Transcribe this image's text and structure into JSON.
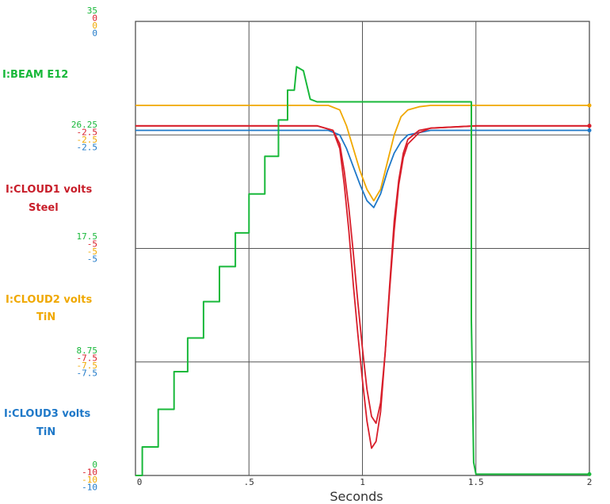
{
  "chart_data": {
    "type": "line",
    "xlabel": "Seconds",
    "xlim": [
      0,
      2
    ],
    "x_ticks": [
      "0",
      ".5",
      "1",
      "1.5",
      "2"
    ],
    "grid": true,
    "colors": {
      "beam": "#18b83a",
      "cloud1": "#d81e2a",
      "cloud2": "#f0a800",
      "cloud3": "#1e78c8"
    },
    "scales": [
      {
        "beam": "35",
        "cloud1": "0",
        "cloud2": "0",
        "cloud3": "0"
      },
      {
        "beam": "26.25",
        "cloud1": "-2.5",
        "cloud2": "-2.5",
        "cloud3": "-2.5"
      },
      {
        "beam": "17.5",
        "cloud1": "-5",
        "cloud2": "-5",
        "cloud3": "-5"
      },
      {
        "beam": "8.75",
        "cloud1": "-7.5",
        "cloud2": "-7.5",
        "cloud3": "-7.5"
      },
      {
        "beam": "0",
        "cloud1": "-10",
        "cloud2": "-10",
        "cloud3": "-10"
      }
    ],
    "series_labels": {
      "beam": "I:BEAM E12",
      "cloud1": "I:CLOUD1 volts",
      "cloud1_sub": "Steel",
      "cloud2": "I:CLOUD2 volts",
      "cloud2_sub": "TiN",
      "cloud3": "I:CLOUD3 volts",
      "cloud3_sub": "TiN"
    },
    "series": [
      {
        "name": "I:BEAM E12",
        "key": "beam",
        "ylim": [
          0,
          35
        ],
        "x": [
          0,
          0.03,
          0.03,
          0.1,
          0.1,
          0.17,
          0.17,
          0.23,
          0.23,
          0.3,
          0.3,
          0.37,
          0.37,
          0.44,
          0.44,
          0.5,
          0.5,
          0.57,
          0.57,
          0.63,
          0.63,
          0.67,
          0.67,
          0.7,
          0.71,
          0.74,
          0.77,
          0.8,
          1.2,
          1.48,
          1.48,
          1.49,
          1.5,
          2.0
        ],
        "y": [
          0,
          0,
          2.2,
          2.2,
          5.1,
          5.1,
          8.0,
          8.0,
          10.6,
          10.6,
          13.4,
          13.4,
          16.1,
          16.1,
          18.7,
          18.7,
          21.7,
          21.7,
          24.6,
          24.6,
          27.4,
          27.4,
          29.7,
          29.7,
          31.5,
          31.2,
          29.0,
          28.8,
          28.8,
          28.8,
          12.0,
          1.0,
          0.1,
          0.1
        ]
      },
      {
        "name": "I:CLOUD1 volts (Steel)",
        "key": "cloud1",
        "ylim": [
          -10,
          0
        ],
        "x": [
          0,
          0.8,
          0.87,
          0.9,
          0.92,
          0.94,
          0.96,
          0.98,
          1.0,
          1.02,
          1.04,
          1.06,
          1.08,
          1.1,
          1.12,
          1.14,
          1.16,
          1.18,
          1.2,
          1.25,
          1.3,
          1.5,
          2.0
        ],
        "y": [
          -2.3,
          -2.3,
          -2.4,
          -2.7,
          -3.3,
          -4.1,
          -5.1,
          -6.2,
          -7.2,
          -8.1,
          -8.7,
          -8.85,
          -8.4,
          -7.3,
          -5.8,
          -4.4,
          -3.5,
          -2.9,
          -2.6,
          -2.4,
          -2.35,
          -2.3,
          -2.3
        ]
      },
      {
        "name": "I:CLOUD1 volts (Steel) #2",
        "key": "cloud1",
        "x": [
          0,
          0.8,
          0.87,
          0.9,
          0.92,
          0.94,
          0.96,
          0.98,
          1.0,
          1.02,
          1.04,
          1.06,
          1.08,
          1.1,
          1.12,
          1.14,
          1.16,
          1.18,
          1.2,
          1.25,
          1.3,
          1.5,
          2.0
        ],
        "y": [
          -2.3,
          -2.3,
          -2.4,
          -2.8,
          -3.6,
          -4.6,
          -5.8,
          -6.9,
          -7.9,
          -8.8,
          -9.4,
          -9.25,
          -8.6,
          -7.3,
          -5.9,
          -4.6,
          -3.6,
          -3.0,
          -2.7,
          -2.45,
          -2.35,
          -2.3,
          -2.3
        ]
      },
      {
        "name": "I:CLOUD2 volts (TiN)",
        "key": "cloud2",
        "ylim": [
          -10,
          0
        ],
        "x": [
          0,
          0.85,
          0.9,
          0.93,
          0.96,
          0.99,
          1.02,
          1.05,
          1.08,
          1.11,
          1.14,
          1.17,
          1.2,
          1.25,
          1.3,
          2.0
        ],
        "y": [
          -1.85,
          -1.85,
          -1.95,
          -2.3,
          -2.8,
          -3.3,
          -3.7,
          -3.95,
          -3.7,
          -3.1,
          -2.5,
          -2.1,
          -1.95,
          -1.88,
          -1.85,
          -1.85
        ]
      },
      {
        "name": "I:CLOUD3 volts (TiN)",
        "key": "cloud3",
        "ylim": [
          -10,
          0
        ],
        "x": [
          0,
          0.85,
          0.9,
          0.93,
          0.96,
          0.99,
          1.02,
          1.05,
          1.08,
          1.11,
          1.14,
          1.17,
          1.2,
          1.25,
          1.3,
          2.0
        ],
        "y": [
          -2.4,
          -2.4,
          -2.5,
          -2.8,
          -3.2,
          -3.6,
          -3.95,
          -4.1,
          -3.8,
          -3.3,
          -2.9,
          -2.65,
          -2.5,
          -2.45,
          -2.4,
          -2.4
        ]
      }
    ]
  }
}
